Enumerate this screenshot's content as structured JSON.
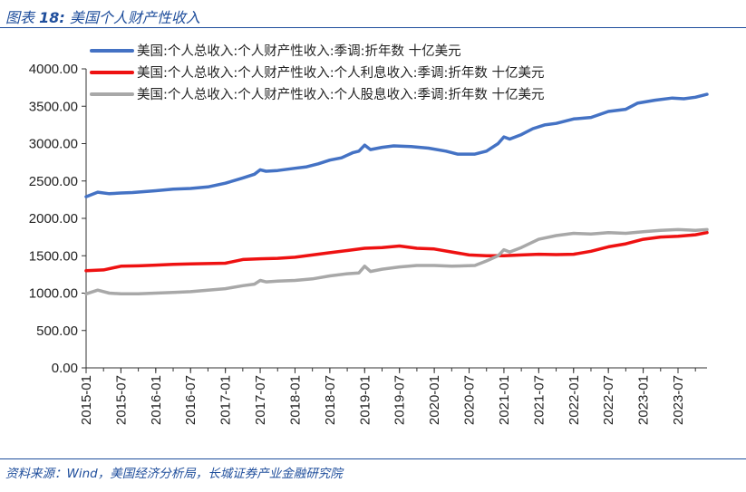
{
  "header": {
    "prefix": "图表",
    "number": "18:",
    "title": "美国个人财产性收入"
  },
  "footer": {
    "source": "资料来源：Wind，美国经济分析局，长城证券产业金融研究院"
  },
  "colors": {
    "accent": "#1f4e9c",
    "series_blue": "#4472c4",
    "series_red": "#ee1111",
    "series_gray": "#a8a8a8"
  },
  "chart_data": {
    "type": "line",
    "title": "",
    "xlabel": "",
    "ylabel": "",
    "ylim": [
      0,
      4000
    ],
    "yticks": [
      "0.00",
      "500.00",
      "1000.00",
      "1500.00",
      "2000.00",
      "2500.00",
      "3000.00",
      "3500.00",
      "4000.00"
    ],
    "xticks": [
      "2015-01",
      "2015-07",
      "2016-01",
      "2016-07",
      "2017-01",
      "2017-07",
      "2018-01",
      "2018-07",
      "2019-01",
      "2019-07",
      "2020-01",
      "2020-07",
      "2021-01",
      "2021-07",
      "2022-01",
      "2022-07",
      "2023-01",
      "2023-07"
    ],
    "x_range": [
      "2015-01",
      "2023-12"
    ],
    "grid": false,
    "legend_position": "top",
    "series": [
      {
        "name": "美国:个人总收入:个人财产性收入:季调:折年数 十亿美元",
        "color": "#4472c4",
        "points": [
          [
            "2015-01",
            2290
          ],
          [
            "2015-03",
            2350
          ],
          [
            "2015-05",
            2330
          ],
          [
            "2015-07",
            2340
          ],
          [
            "2015-09",
            2345
          ],
          [
            "2016-01",
            2370
          ],
          [
            "2016-04",
            2390
          ],
          [
            "2016-07",
            2400
          ],
          [
            "2016-10",
            2420
          ],
          [
            "2017-01",
            2470
          ],
          [
            "2017-04",
            2540
          ],
          [
            "2017-06",
            2590
          ],
          [
            "2017-07",
            2650
          ],
          [
            "2017-08",
            2630
          ],
          [
            "2017-10",
            2640
          ],
          [
            "2018-01",
            2670
          ],
          [
            "2018-03",
            2690
          ],
          [
            "2018-05",
            2730
          ],
          [
            "2018-07",
            2780
          ],
          [
            "2018-09",
            2810
          ],
          [
            "2018-11",
            2880
          ],
          [
            "2018-12",
            2900
          ],
          [
            "2019-01",
            2980
          ],
          [
            "2019-02",
            2920
          ],
          [
            "2019-04",
            2950
          ],
          [
            "2019-06",
            2970
          ],
          [
            "2019-09",
            2960
          ],
          [
            "2019-12",
            2940
          ],
          [
            "2020-03",
            2900
          ],
          [
            "2020-05",
            2860
          ],
          [
            "2020-08",
            2860
          ],
          [
            "2020-10",
            2900
          ],
          [
            "2020-12",
            3000
          ],
          [
            "2021-01",
            3090
          ],
          [
            "2021-02",
            3060
          ],
          [
            "2021-04",
            3120
          ],
          [
            "2021-06",
            3200
          ],
          [
            "2021-08",
            3250
          ],
          [
            "2021-10",
            3270
          ],
          [
            "2022-01",
            3330
          ],
          [
            "2022-04",
            3350
          ],
          [
            "2022-07",
            3430
          ],
          [
            "2022-10",
            3460
          ],
          [
            "2022-12",
            3540
          ],
          [
            "2023-03",
            3580
          ],
          [
            "2023-06",
            3610
          ],
          [
            "2023-08",
            3600
          ],
          [
            "2023-10",
            3620
          ],
          [
            "2023-12",
            3660
          ]
        ]
      },
      {
        "name": "美国:个人总收入:个人财产性收入:个人利息收入:季调:折年数 十亿美元",
        "color": "#ee1111",
        "points": [
          [
            "2015-01",
            1300
          ],
          [
            "2015-04",
            1310
          ],
          [
            "2015-07",
            1360
          ],
          [
            "2015-10",
            1365
          ],
          [
            "2016-01",
            1375
          ],
          [
            "2016-04",
            1385
          ],
          [
            "2016-07",
            1390
          ],
          [
            "2016-10",
            1395
          ],
          [
            "2017-01",
            1400
          ],
          [
            "2017-04",
            1450
          ],
          [
            "2017-07",
            1460
          ],
          [
            "2017-10",
            1465
          ],
          [
            "2018-01",
            1480
          ],
          [
            "2018-04",
            1510
          ],
          [
            "2018-07",
            1540
          ],
          [
            "2018-10",
            1570
          ],
          [
            "2019-01",
            1600
          ],
          [
            "2019-04",
            1610
          ],
          [
            "2019-07",
            1630
          ],
          [
            "2019-10",
            1600
          ],
          [
            "2020-01",
            1590
          ],
          [
            "2020-04",
            1550
          ],
          [
            "2020-07",
            1510
          ],
          [
            "2020-10",
            1500
          ],
          [
            "2021-01",
            1500
          ],
          [
            "2021-04",
            1510
          ],
          [
            "2021-07",
            1520
          ],
          [
            "2021-10",
            1515
          ],
          [
            "2022-01",
            1520
          ],
          [
            "2022-04",
            1560
          ],
          [
            "2022-07",
            1620
          ],
          [
            "2022-10",
            1660
          ],
          [
            "2023-01",
            1720
          ],
          [
            "2023-04",
            1750
          ],
          [
            "2023-07",
            1760
          ],
          [
            "2023-10",
            1780
          ],
          [
            "2023-12",
            1810
          ]
        ]
      },
      {
        "name": "美国:个人总收入:个人财产性收入:个人股息收入:季调:折年数 十亿美元",
        "color": "#a8a8a8",
        "points": [
          [
            "2015-01",
            990
          ],
          [
            "2015-03",
            1040
          ],
          [
            "2015-05",
            1000
          ],
          [
            "2015-07",
            990
          ],
          [
            "2015-10",
            990
          ],
          [
            "2016-01",
            1000
          ],
          [
            "2016-04",
            1010
          ],
          [
            "2016-07",
            1020
          ],
          [
            "2016-10",
            1040
          ],
          [
            "2017-01",
            1060
          ],
          [
            "2017-04",
            1100
          ],
          [
            "2017-06",
            1120
          ],
          [
            "2017-07",
            1170
          ],
          [
            "2017-08",
            1150
          ],
          [
            "2017-10",
            1160
          ],
          [
            "2018-01",
            1170
          ],
          [
            "2018-04",
            1190
          ],
          [
            "2018-07",
            1230
          ],
          [
            "2018-10",
            1260
          ],
          [
            "2018-12",
            1270
          ],
          [
            "2019-01",
            1360
          ],
          [
            "2019-02",
            1290
          ],
          [
            "2019-04",
            1320
          ],
          [
            "2019-07",
            1350
          ],
          [
            "2019-10",
            1370
          ],
          [
            "2020-01",
            1370
          ],
          [
            "2020-04",
            1360
          ],
          [
            "2020-08",
            1370
          ],
          [
            "2020-10",
            1430
          ],
          [
            "2020-12",
            1500
          ],
          [
            "2021-01",
            1580
          ],
          [
            "2021-02",
            1550
          ],
          [
            "2021-04",
            1610
          ],
          [
            "2021-07",
            1720
          ],
          [
            "2021-10",
            1770
          ],
          [
            "2022-01",
            1800
          ],
          [
            "2022-04",
            1790
          ],
          [
            "2022-07",
            1810
          ],
          [
            "2022-10",
            1800
          ],
          [
            "2023-01",
            1820
          ],
          [
            "2023-04",
            1840
          ],
          [
            "2023-07",
            1850
          ],
          [
            "2023-10",
            1840
          ],
          [
            "2023-12",
            1850
          ]
        ]
      }
    ]
  }
}
